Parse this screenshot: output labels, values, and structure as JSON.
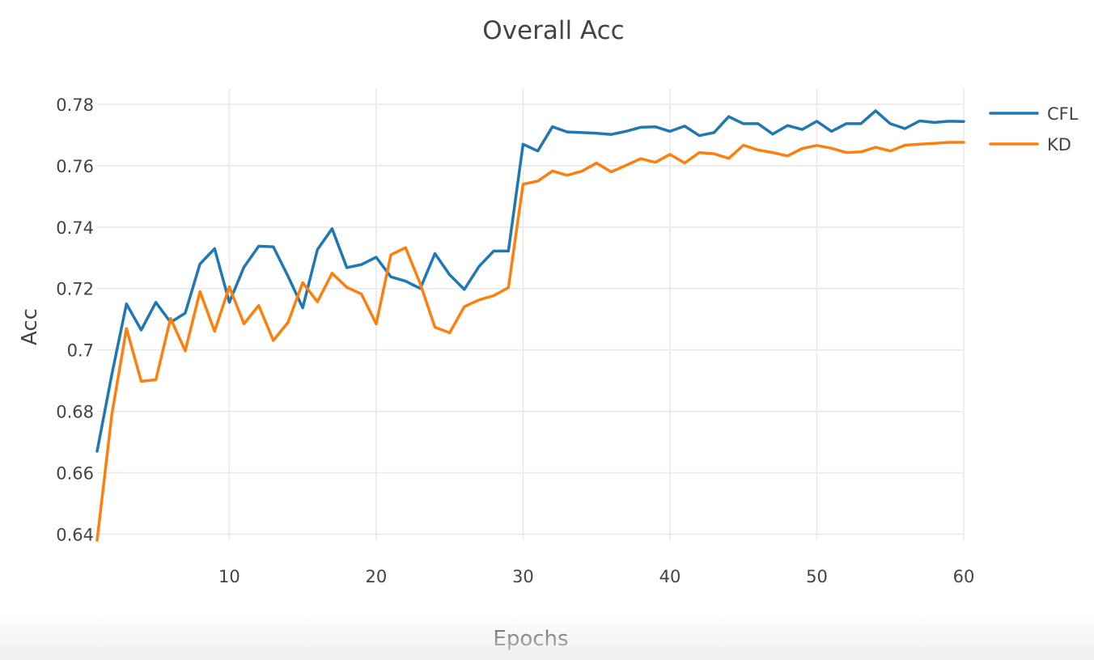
{
  "chart_data": {
    "type": "line",
    "title": "Overall Acc",
    "xlabel": "Epochs",
    "ylabel": "Acc",
    "xlim": [
      1,
      60
    ],
    "ylim": [
      0.638,
      0.785
    ],
    "x_ticks": [
      10,
      20,
      30,
      40,
      50,
      60
    ],
    "x_tick_labels": [
      "10",
      "20",
      "30",
      "40",
      "50",
      "60"
    ],
    "y_ticks": [
      0.64,
      0.66,
      0.68,
      0.7,
      0.72,
      0.74,
      0.76,
      0.78
    ],
    "y_tick_labels": [
      "0.64",
      "0.66",
      "0.68",
      "0.7",
      "0.72",
      "0.74",
      "0.76",
      "0.78"
    ],
    "grid": true,
    "legend_position": "top-right",
    "x": [
      1,
      2,
      3,
      4,
      5,
      6,
      7,
      8,
      9,
      10,
      11,
      12,
      13,
      14,
      15,
      16,
      17,
      18,
      19,
      20,
      21,
      22,
      23,
      24,
      25,
      26,
      27,
      28,
      29,
      30,
      31,
      32,
      33,
      34,
      35,
      36,
      37,
      38,
      39,
      40,
      41,
      42,
      43,
      44,
      45,
      46,
      47,
      48,
      49,
      50,
      51,
      52,
      53,
      54,
      55,
      56,
      57,
      58,
      59,
      60
    ],
    "series": [
      {
        "name": "CFL",
        "color": "#1f77b4",
        "values": [
          0.667,
          0.692,
          0.715,
          0.7065,
          0.7155,
          0.709,
          0.712,
          0.728,
          0.733,
          0.7155,
          0.727,
          0.7338,
          0.7336,
          0.724,
          0.7137,
          0.7327,
          0.7395,
          0.7268,
          0.7278,
          0.7302,
          0.7238,
          0.7224,
          0.72,
          0.7314,
          0.7245,
          0.7197,
          0.7272,
          0.7322,
          0.7322,
          0.767,
          0.7648,
          0.7727,
          0.771,
          0.7708,
          0.7706,
          0.7702,
          0.7712,
          0.7725,
          0.7727,
          0.7712,
          0.7729,
          0.7698,
          0.7708,
          0.776,
          0.7737,
          0.7737,
          0.7703,
          0.7731,
          0.7718,
          0.7745,
          0.7712,
          0.7737,
          0.7737,
          0.7779,
          0.7737,
          0.7721,
          0.7746,
          0.7741,
          0.7745,
          0.7744
        ]
      },
      {
        "name": "KD",
        "color": "#ff7f0e",
        "values": [
          0.638,
          0.679,
          0.707,
          0.6898,
          0.6903,
          0.7103,
          0.6997,
          0.719,
          0.7061,
          0.7206,
          0.7085,
          0.7145,
          0.7031,
          0.709,
          0.7219,
          0.7157,
          0.725,
          0.7204,
          0.7182,
          0.7085,
          0.731,
          0.7333,
          0.7215,
          0.7074,
          0.7056,
          0.7141,
          0.7163,
          0.7177,
          0.7203,
          0.754,
          0.755,
          0.7583,
          0.7569,
          0.7582,
          0.7609,
          0.758,
          0.7601,
          0.7623,
          0.7611,
          0.7637,
          0.7609,
          0.7643,
          0.7639,
          0.7624,
          0.7667,
          0.7651,
          0.7643,
          0.7632,
          0.7656,
          0.7666,
          0.7657,
          0.7643,
          0.7645,
          0.766,
          0.7648,
          0.7667,
          0.767,
          0.7673,
          0.7676,
          0.7676
        ]
      }
    ]
  }
}
